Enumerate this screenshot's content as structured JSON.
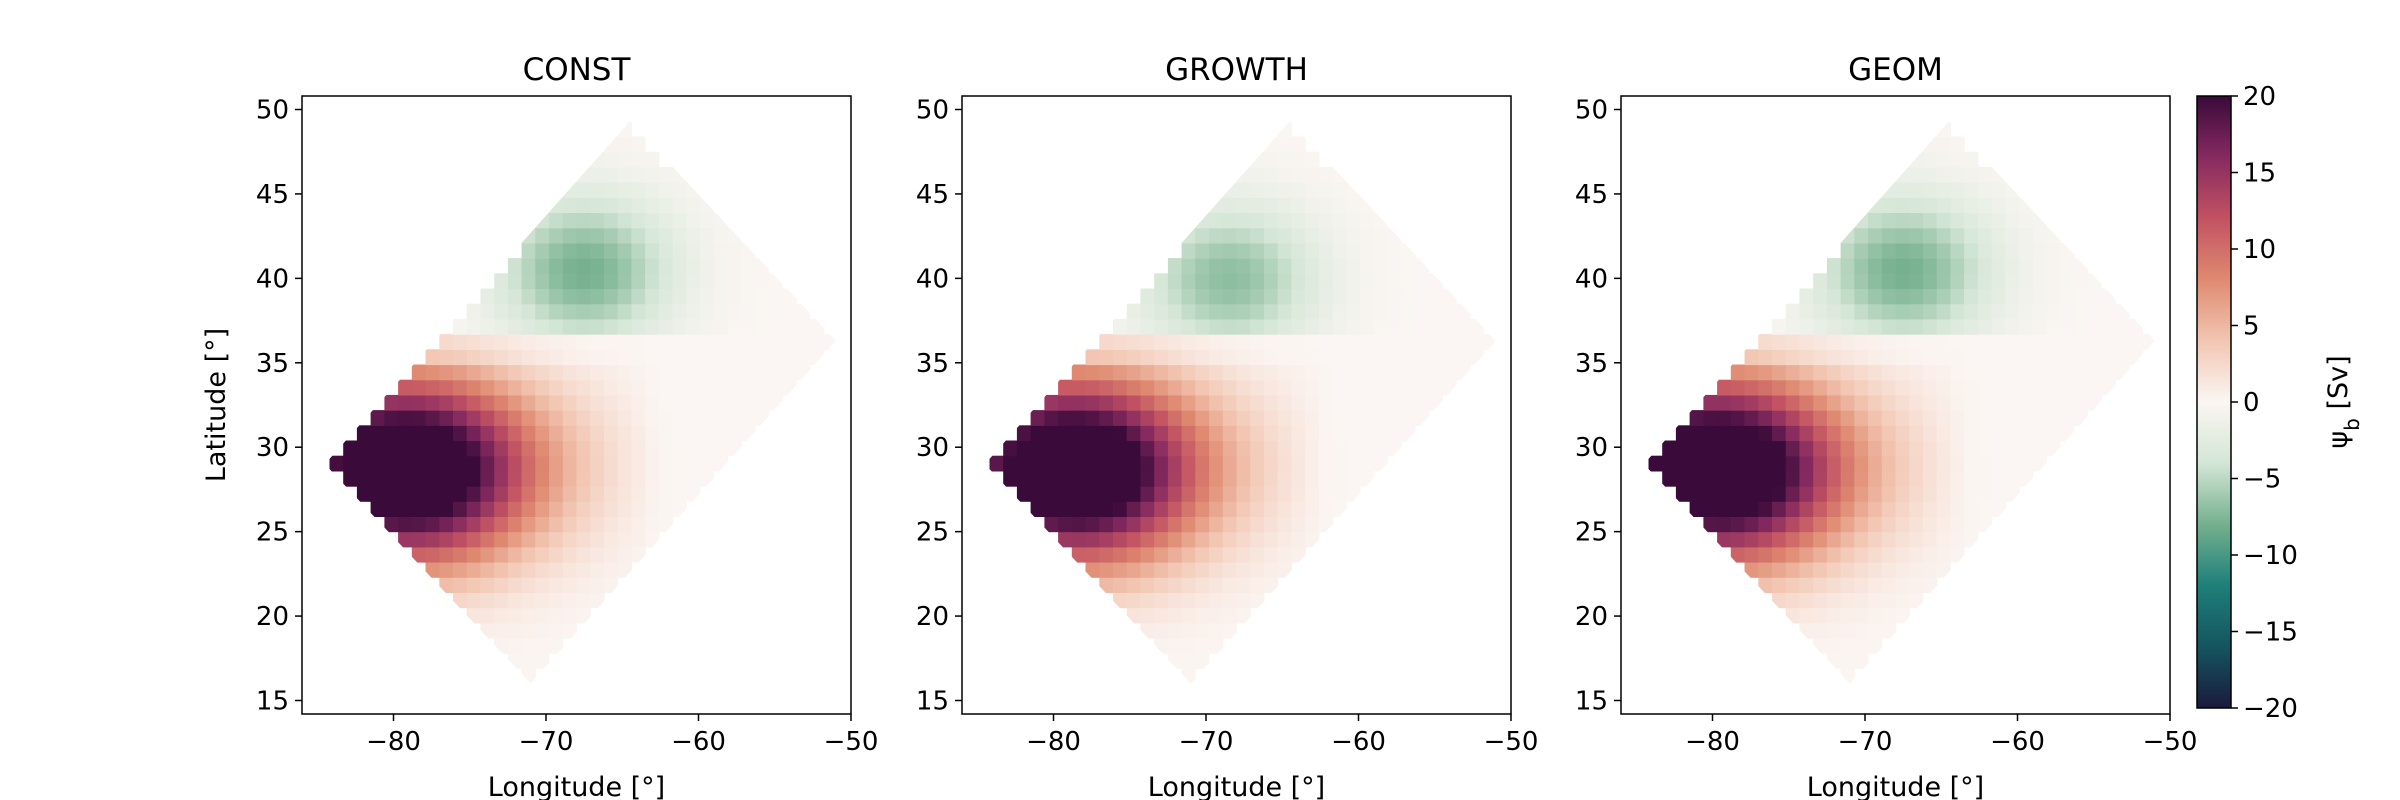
{
  "chart_data": [
    {
      "type": "heatmap",
      "title": "CONST",
      "xlabel": "Longitude [°]",
      "ylabel": "Latitude [°]",
      "xlim": [
        -86,
        -50
      ],
      "ylim": [
        14.2,
        50.8
      ],
      "xticks": [
        -80,
        -70,
        -60,
        -50
      ],
      "yticks": [
        15,
        20,
        25,
        30,
        35,
        40,
        45,
        50
      ],
      "domain_corners": [
        [
          -64.5,
          49.3
        ],
        [
          -51.0,
          36.3
        ],
        [
          -71.0,
          16.0
        ],
        [
          -84.5,
          29.0
        ]
      ],
      "grid": false,
      "field": {
        "units": "Sv",
        "positive_center": [
          -78.5,
          28.5
        ],
        "positive_peak": 19,
        "negative_center": [
          -67.5,
          40.5
        ],
        "negative_peak": -8
      }
    },
    {
      "type": "heatmap",
      "title": "GROWTH",
      "xlabel": "Longitude [°]",
      "ylabel": "",
      "xlim": [
        -86,
        -50
      ],
      "ylim": [
        14.2,
        50.8
      ],
      "xticks": [
        -80,
        -70,
        -60,
        -50
      ],
      "yticks": [
        15,
        20,
        25,
        30,
        35,
        40,
        45,
        50
      ],
      "domain_corners": [
        [
          -64.5,
          49.3
        ],
        [
          -51.0,
          36.3
        ],
        [
          -71.0,
          16.0
        ],
        [
          -84.5,
          29.0
        ]
      ],
      "grid": false,
      "field": {
        "units": "Sv",
        "positive_center": [
          -78.0,
          28.5
        ],
        "positive_peak": 19,
        "negative_center": [
          -68.5,
          40.0
        ],
        "negative_peak": -7
      }
    },
    {
      "type": "heatmap",
      "title": "GEOM",
      "xlabel": "Longitude [°]",
      "ylabel": "",
      "xlim": [
        -86,
        -50
      ],
      "ylim": [
        14.2,
        50.8
      ],
      "xticks": [
        -80,
        -70,
        -60,
        -50
      ],
      "yticks": [
        15,
        20,
        25,
        30,
        35,
        40,
        45,
        50
      ],
      "domain_corners": [
        [
          -64.5,
          49.3
        ],
        [
          -51.0,
          36.3
        ],
        [
          -71.0,
          16.0
        ],
        [
          -84.5,
          29.0
        ]
      ],
      "grid": false,
      "field": {
        "units": "Sv",
        "positive_center": [
          -79.0,
          28.5
        ],
        "positive_peak": 19,
        "negative_center": [
          -67.5,
          40.5
        ],
        "negative_peak": -8
      }
    }
  ],
  "colorbar": {
    "label": "ψ_b [Sv]",
    "label_main": "ψ",
    "label_sub": "b",
    "label_units": " [Sv]",
    "range": [
      -20,
      20
    ],
    "ticks": [
      20,
      15,
      10,
      5,
      0,
      -5,
      -10,
      -15,
      -20
    ],
    "tick_labels": [
      "20",
      "15",
      "10",
      "5",
      "0",
      "−5",
      "−10",
      "−15",
      "−20"
    ],
    "colormap": [
      "#1a1a3d",
      "#15555f",
      "#1e7f7a",
      "#75b08e",
      "#d4e6d6",
      "#fbf6f3",
      "#f2c6b2",
      "#df8a70",
      "#c25262",
      "#862a60",
      "#3a0a3a"
    ]
  }
}
